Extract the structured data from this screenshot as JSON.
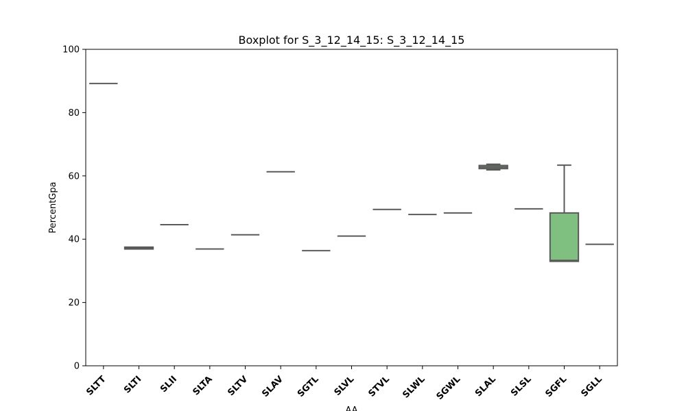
{
  "chart_data": {
    "type": "box",
    "title": "Boxplot for S_3_12_14_15: S_3_12_14_15",
    "xlabel": "AA",
    "ylabel": "PercentGpa",
    "ylim": [
      0,
      100
    ],
    "yticks": [
      0,
      20,
      40,
      60,
      80,
      100
    ],
    "grid": false,
    "box_color": "#7fbf7f",
    "line_color": "#595959",
    "categories": [
      "SLTT",
      "SLTI",
      "SLII",
      "SLTA",
      "SLTV",
      "SLAV",
      "SGTL",
      "SLVL",
      "STVL",
      "SLWL",
      "SGWL",
      "SLAL",
      "SLSL",
      "SGFL",
      "SGLL"
    ],
    "boxes": [
      {
        "category": "SLTT",
        "min": 89.2,
        "q1": 89.2,
        "median": 89.2,
        "q3": 89.2,
        "max": 89.2
      },
      {
        "category": "SLTI",
        "min": 36.9,
        "q1": 36.9,
        "median": 37.2,
        "q3": 37.5,
        "max": 37.5
      },
      {
        "category": "SLII",
        "min": 44.6,
        "q1": 44.6,
        "median": 44.6,
        "q3": 44.6,
        "max": 44.6
      },
      {
        "category": "SLTA",
        "min": 36.9,
        "q1": 36.9,
        "median": 36.9,
        "q3": 36.9,
        "max": 36.9
      },
      {
        "category": "SLTV",
        "min": 41.4,
        "q1": 41.4,
        "median": 41.4,
        "q3": 41.4,
        "max": 41.4
      },
      {
        "category": "SLAV",
        "min": 61.3,
        "q1": 61.3,
        "median": 61.3,
        "q3": 61.3,
        "max": 61.3
      },
      {
        "category": "SGTL",
        "min": 36.4,
        "q1": 36.4,
        "median": 36.4,
        "q3": 36.4,
        "max": 36.4
      },
      {
        "category": "SLVL",
        "min": 41.0,
        "q1": 41.0,
        "median": 41.0,
        "q3": 41.0,
        "max": 41.0
      },
      {
        "category": "STVL",
        "min": 49.4,
        "q1": 49.4,
        "median": 49.4,
        "q3": 49.4,
        "max": 49.4
      },
      {
        "category": "SLWL",
        "min": 47.8,
        "q1": 47.8,
        "median": 47.8,
        "q3": 47.8,
        "max": 47.8
      },
      {
        "category": "SGWL",
        "min": 48.3,
        "q1": 48.3,
        "median": 48.3,
        "q3": 48.3,
        "max": 48.3
      },
      {
        "category": "SLAL",
        "min": 61.9,
        "q1": 62.3,
        "median": 62.8,
        "q3": 63.3,
        "max": 63.7
      },
      {
        "category": "SLSL",
        "min": 49.6,
        "q1": 49.6,
        "median": 49.6,
        "q3": 49.6,
        "max": 49.6
      },
      {
        "category": "SGFL",
        "min": 33.0,
        "q1": 33.0,
        "median": 33.3,
        "q3": 48.3,
        "max": 63.4
      },
      {
        "category": "SGLL",
        "min": 38.4,
        "q1": 38.4,
        "median": 38.4,
        "q3": 38.4,
        "max": 38.4
      }
    ]
  }
}
